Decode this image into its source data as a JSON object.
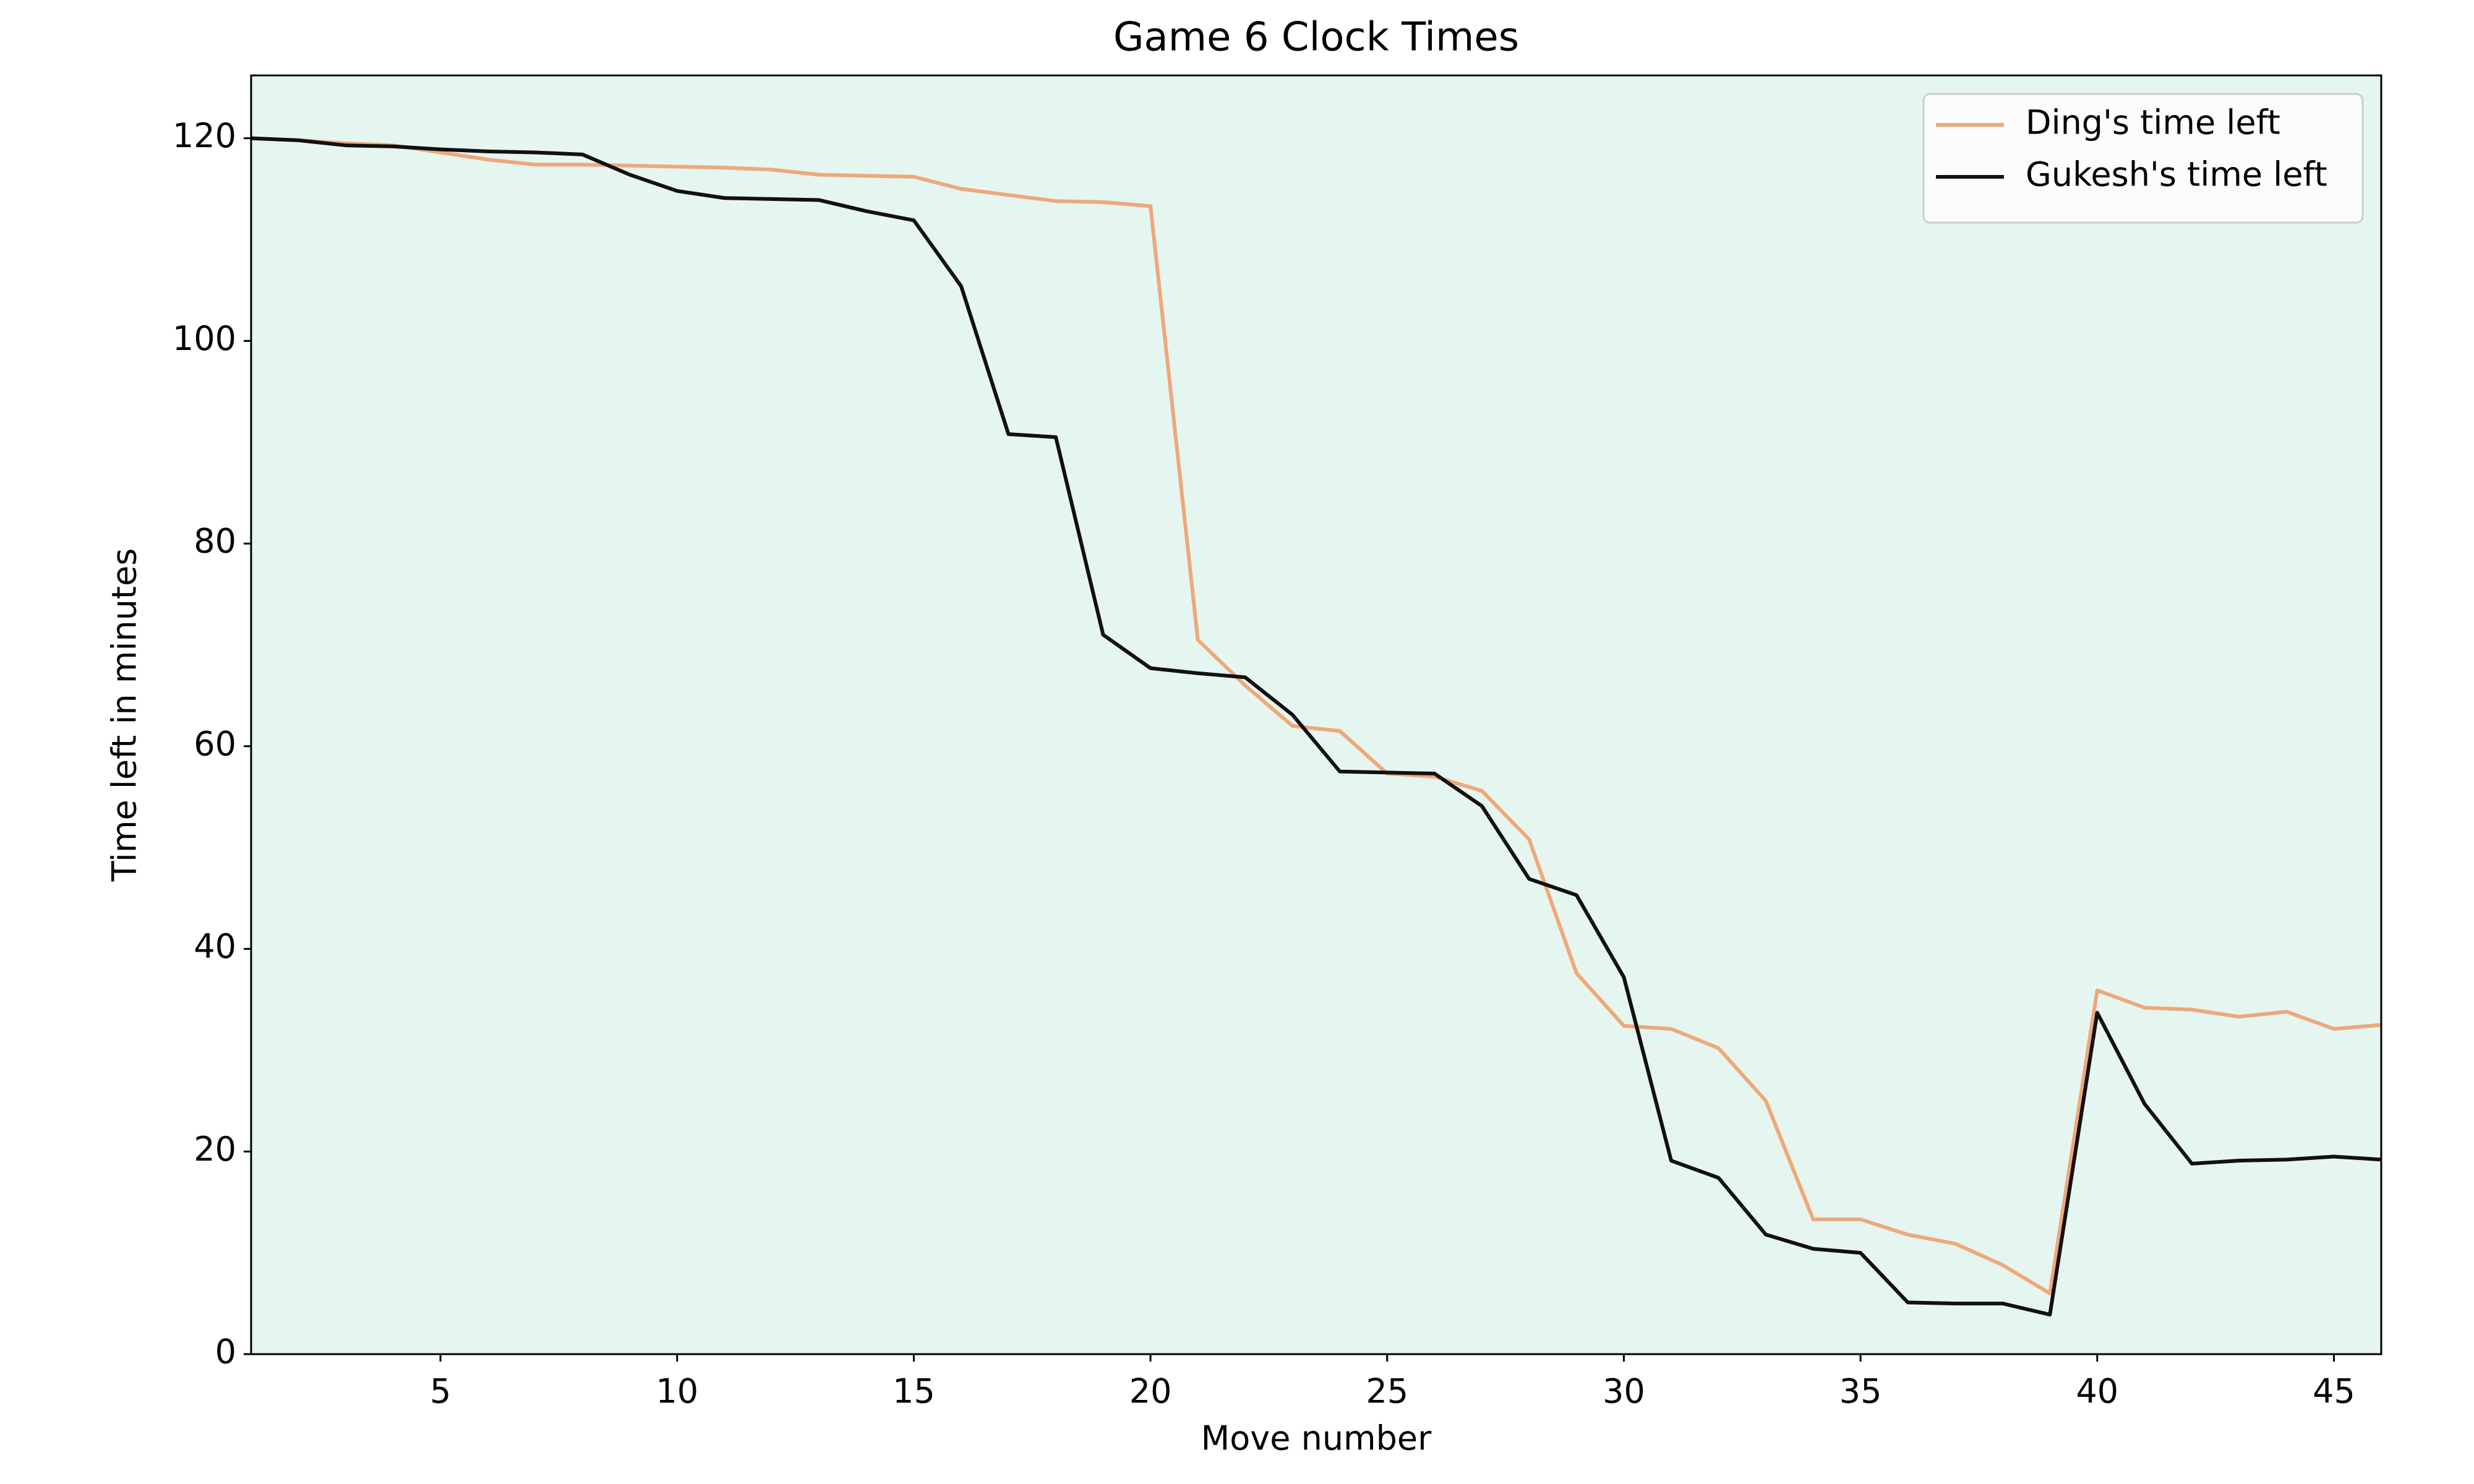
{
  "chart_data": {
    "type": "line",
    "title": "Game 6 Clock Times",
    "x_label": "Move number",
    "y_label": "Time left in minutes",
    "x": [
      1,
      2,
      3,
      4,
      5,
      6,
      7,
      8,
      9,
      10,
      11,
      12,
      13,
      14,
      15,
      16,
      17,
      18,
      19,
      20,
      21,
      22,
      23,
      24,
      25,
      26,
      27,
      28,
      29,
      30,
      31,
      32,
      33,
      34,
      35,
      36,
      37,
      38,
      39,
      40,
      41,
      42,
      43,
      44,
      45,
      46
    ],
    "series": [
      {
        "name": "Ding's time left",
        "color": "#f0a878",
        "values": [
          120,
          119.8,
          119.5,
          119.3,
          118.6,
          117.9,
          117.4,
          117.4,
          117.3,
          117.2,
          117.1,
          116.9,
          116.4,
          116.3,
          116.2,
          115.0,
          114.4,
          113.8,
          113.7,
          113.3,
          70.5,
          66.0,
          62.0,
          61.5,
          57.3,
          57.0,
          55.6,
          50.8,
          37.6,
          32.4,
          32.1,
          30.2,
          25.0,
          13.3,
          13.3,
          11.8,
          10.9,
          8.8,
          6.0,
          35.9,
          34.2,
          34.0,
          33.3,
          33.8,
          32.1,
          32.5
        ]
      },
      {
        "name": "Gukesh's time left",
        "color": "#111111",
        "values": [
          120,
          119.8,
          119.3,
          119.2,
          118.9,
          118.7,
          118.6,
          118.4,
          116.4,
          114.8,
          114.1,
          114.0,
          113.9,
          112.8,
          111.9,
          105.4,
          90.8,
          90.5,
          71.0,
          67.7,
          67.2,
          66.8,
          63.1,
          57.5,
          57.4,
          57.3,
          54.1,
          46.9,
          45.3,
          37.2,
          19.1,
          17.4,
          11.8,
          10.4,
          10.0,
          5.1,
          5.0,
          5.0,
          3.9,
          33.7,
          24.7,
          18.8,
          19.1,
          19.2,
          19.5,
          19.2
        ]
      }
    ],
    "xlim": [
      1,
      46
    ],
    "xticks": [
      5,
      10,
      15,
      20,
      25,
      30,
      35,
      40,
      45
    ],
    "ylim": [
      0,
      126.2
    ],
    "yticks": [
      0,
      20,
      40,
      60,
      80,
      100,
      120
    ],
    "background": "#e5f5ef",
    "legend": "upper-right"
  }
}
